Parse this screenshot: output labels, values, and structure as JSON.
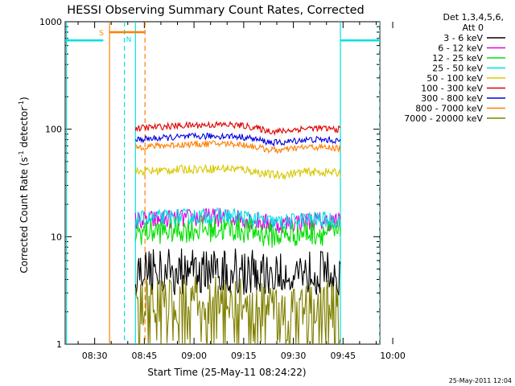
{
  "chart_data": {
    "type": "line",
    "title": "HESSI Observing Summary Count Rates, Corrected",
    "xlabel": "Start Time (25-May-11 08:24:22)",
    "ylabel_main": "Corrected Count Rate (s",
    "ylabel_sup1": "-1",
    "ylabel_mid": " detector",
    "ylabel_sup2": "-1",
    "ylabel_end": ")",
    "y_scale": "log",
    "ylim": [
      1,
      1000
    ],
    "xlim_minutes": [
      -8.9,
      86.1
    ],
    "x_ticks": [
      {
        "label": "08:30",
        "min": 0
      },
      {
        "label": "08:45",
        "min": 15
      },
      {
        "label": "09:00",
        "min": 30
      },
      {
        "label": "09:15",
        "min": 45
      },
      {
        "label": "09:30",
        "min": 60
      },
      {
        "label": "09:45",
        "min": 75
      },
      {
        "label": "10:00",
        "min": 90
      }
    ],
    "y_ticks": [
      {
        "label": "1",
        "value": 1
      },
      {
        "label": "10",
        "value": 10
      },
      {
        "label": "100",
        "value": 100
      },
      {
        "label": "1000",
        "value": 1000
      }
    ],
    "legend_header_1": "Det 1,3,4,5,6,",
    "legend_header_2": "Att 0",
    "legend_position": "top-right outside plot",
    "series": [
      {
        "name": "3 - 6 keV",
        "color": "#000000",
        "base": 5.0,
        "noise": 0.35,
        "lowfloor": 3.2
      },
      {
        "name": "6 - 12 keV",
        "color": "#e000e0",
        "base": 14.0,
        "noise": 0.18
      },
      {
        "name": "12 - 25 keV",
        "color": "#00e000",
        "base": 11.0,
        "noise": 0.25
      },
      {
        "name": "25 - 50 keV",
        "color": "#00e0e0",
        "base": 14.5,
        "noise": 0.15
      },
      {
        "name": "50 - 100 keV",
        "color": "#d8c800",
        "base": 40.0,
        "noise": 0.08
      },
      {
        "name": "100 - 300 keV",
        "color": "#e00000",
        "base": 102.0,
        "noise": 0.06
      },
      {
        "name": "300 - 800 keV",
        "color": "#0000e0",
        "base": 80.0,
        "noise": 0.06
      },
      {
        "name": "800 - 7000 keV",
        "color": "#ff7f00",
        "base": 68.0,
        "noise": 0.06
      },
      {
        "name": "7000 - 20000 keV",
        "color": "#808000",
        "base": 2.4,
        "noise": 0.45,
        "lowfloor": 1.0
      }
    ],
    "data_window_minutes": [
      12.3,
      74.2
    ],
    "saa_flag": {
      "label": "S",
      "start_min": 4.5,
      "end_min": 15.2,
      "level": 800,
      "color": "#ff7f00"
    },
    "night_flag": {
      "label": "N",
      "level": 670,
      "segments": [
        [
          -8.9,
          2.6
        ],
        [
          74.2,
          86.1
        ]
      ],
      "color": "#00e0e0"
    },
    "vlines": [
      {
        "min": -8.5,
        "color": "#00e0e0",
        "dash": false
      },
      {
        "min": 4.5,
        "color": "#ff7f00",
        "dash": false
      },
      {
        "min": 12.3,
        "color": "#00e0e0",
        "dash": false
      },
      {
        "min": 15.2,
        "color": "#ff7f00",
        "dash": true
      },
      {
        "min": 9.0,
        "color": "#00e0e0",
        "dash": true
      },
      {
        "min": 74.2,
        "color": "#00e0e0",
        "dash": false
      },
      {
        "min": 86.1,
        "color": "#00e0e0",
        "dash": true
      }
    ],
    "timestamp": "25-May-2011 12:04"
  }
}
